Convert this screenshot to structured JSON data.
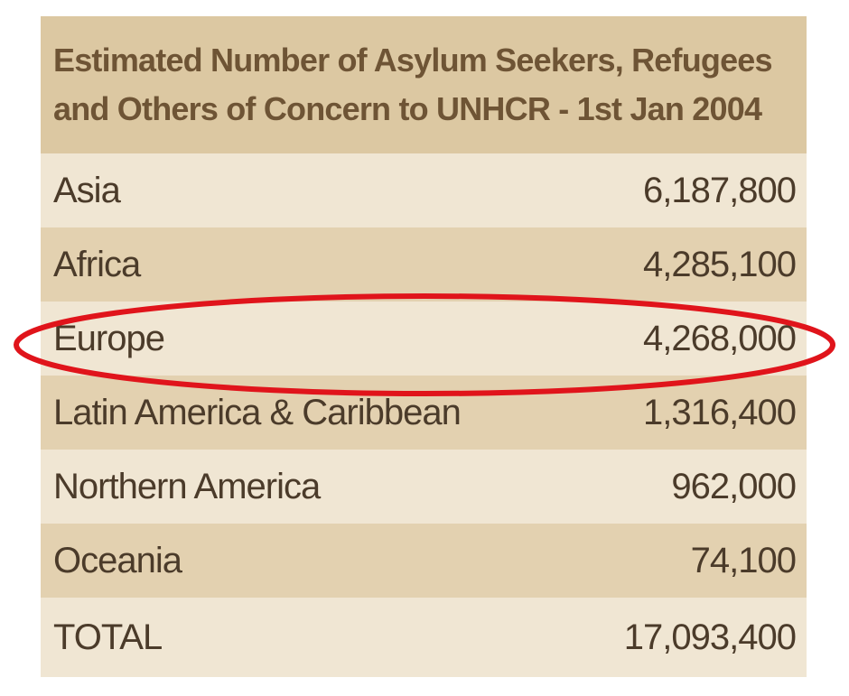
{
  "header": {
    "title_lines": [
      "Estimated Number of Asylum Seekers, Refugees",
      "and Others of Concern to UNHCR - 1st Jan 2004"
    ]
  },
  "table": {
    "rows": [
      [
        "Asia",
        "6,187,800"
      ],
      [
        "Africa",
        "4,285,100"
      ],
      [
        "Europe",
        "4,268,000"
      ],
      [
        "Latin America & Caribbean",
        "1,316,400"
      ],
      [
        "Northern America",
        "962,000"
      ],
      [
        "Oceania",
        "74,100"
      ],
      [
        "TOTAL",
        "17,093,400"
      ]
    ]
  }
}
